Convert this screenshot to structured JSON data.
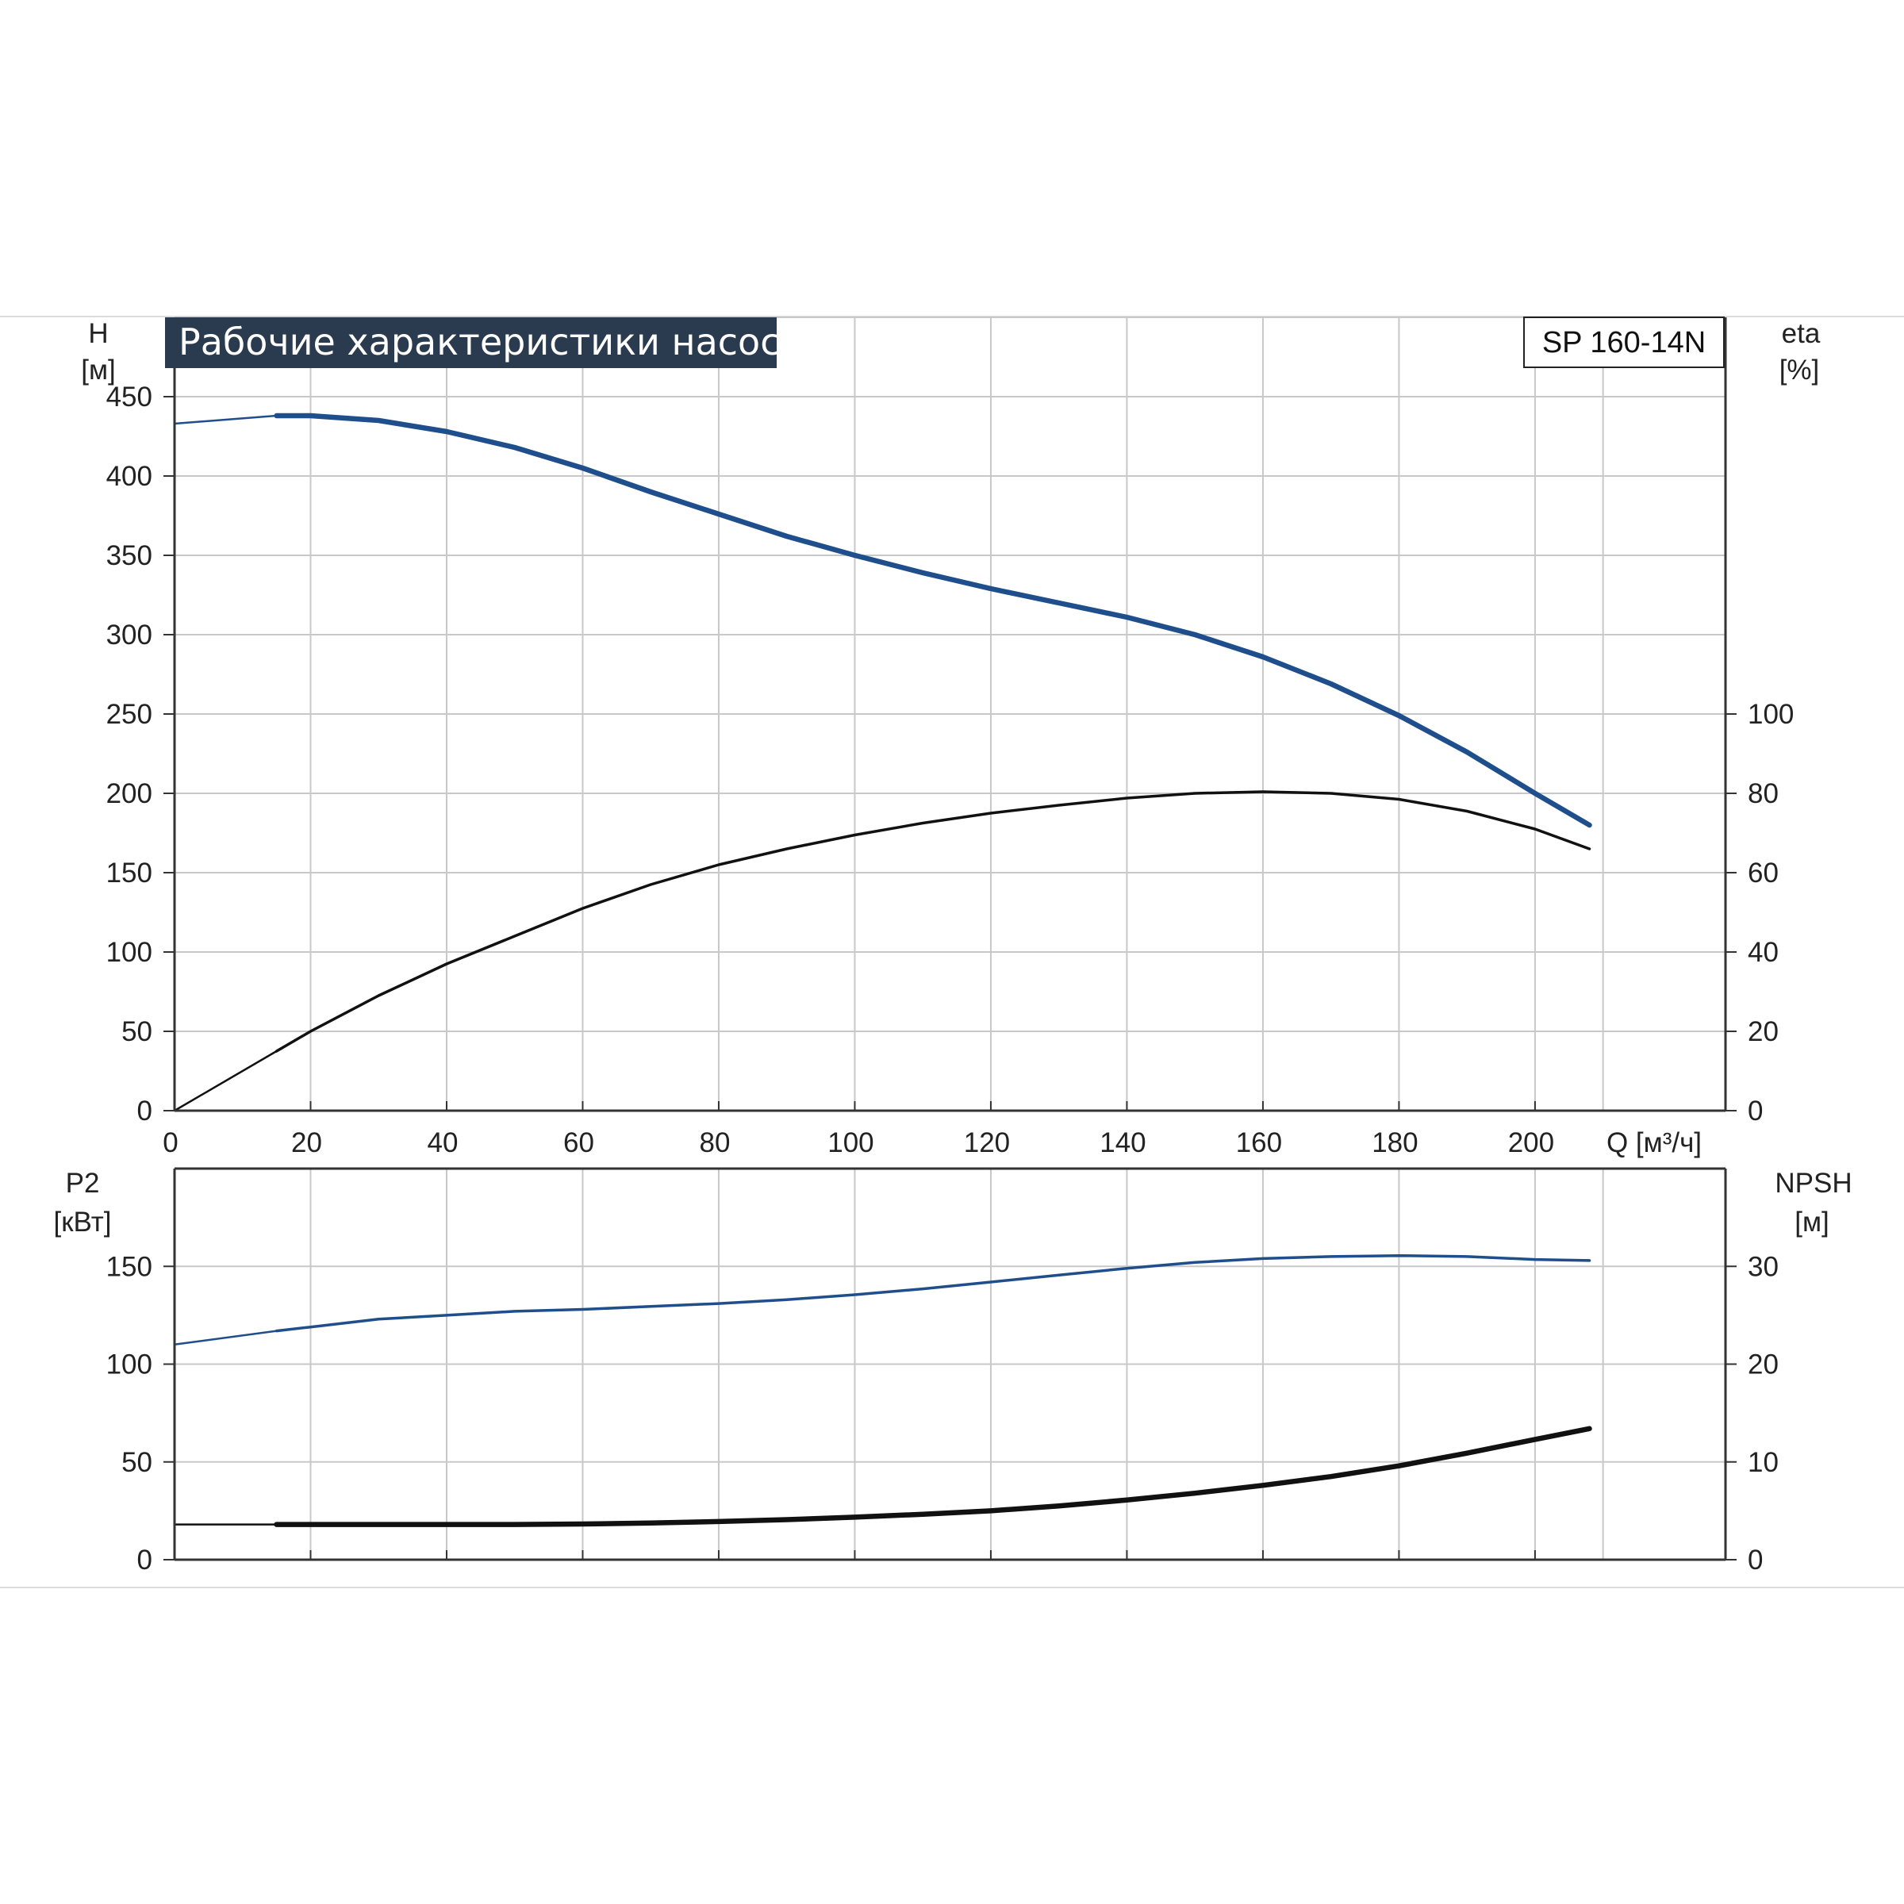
{
  "chart_data": [
    {
      "type": "line",
      "title": "Рабочие характеристики насоса",
      "model": "SP 160-14N",
      "xlabel": "Q [м³/ч]",
      "xlim": [
        0,
        228
      ],
      "x_ticks": [
        0,
        20,
        40,
        60,
        80,
        100,
        120,
        140,
        160,
        180,
        200
      ],
      "y_left": {
        "label_top": "H",
        "label_unit": "[м]",
        "lim": [
          0,
          500
        ],
        "ticks": [
          0,
          50,
          100,
          150,
          200,
          250,
          300,
          350,
          400,
          450
        ]
      },
      "y_right": {
        "label_top": "eta",
        "label_unit": "[%]",
        "lim": [
          0,
          200
        ],
        "ticks": [
          0,
          20,
          40,
          60,
          80,
          100
        ]
      },
      "grid": true,
      "series": [
        {
          "axis": "left",
          "color": "#1f4e8c",
          "x": [
            0,
            15,
            20,
            30,
            40,
            50,
            60,
            70,
            80,
            90,
            100,
            110,
            120,
            130,
            140,
            150,
            160,
            170,
            180,
            190,
            200,
            208
          ],
          "y": [
            433,
            438,
            438,
            435,
            428,
            418,
            405,
            390,
            376,
            362,
            350,
            339,
            329,
            320,
            311,
            300,
            286,
            269,
            249,
            226,
            200,
            180
          ]
        },
        {
          "axis": "right",
          "color": "#111111",
          "x": [
            0,
            15,
            20,
            30,
            40,
            50,
            60,
            70,
            80,
            90,
            100,
            110,
            120,
            130,
            140,
            150,
            160,
            170,
            180,
            190,
            200,
            208
          ],
          "y": [
            0,
            15,
            20,
            29,
            37,
            44,
            51,
            57,
            62,
            66,
            69.5,
            72.5,
            75,
            77,
            78.8,
            80,
            80.4,
            80,
            78.5,
            75.5,
            71,
            66
          ]
        }
      ]
    },
    {
      "type": "line",
      "xlim": [
        0,
        228
      ],
      "x_ticks": [
        0,
        20,
        40,
        60,
        80,
        100,
        120,
        140,
        160,
        180,
        200
      ],
      "y_left": {
        "label_top": "P2",
        "label_unit": "[кВт]",
        "lim": [
          0,
          200
        ],
        "ticks": [
          0,
          50,
          100,
          150
        ]
      },
      "y_right": {
        "label_top": "NPSH",
        "label_unit": "[м]",
        "lim": [
          0,
          40
        ],
        "ticks": [
          0,
          10,
          20,
          30
        ]
      },
      "grid": true,
      "series": [
        {
          "axis": "left",
          "color": "#1f4e8c",
          "x": [
            0,
            15,
            20,
            30,
            40,
            50,
            60,
            70,
            80,
            90,
            100,
            110,
            120,
            130,
            140,
            150,
            160,
            170,
            180,
            190,
            200,
            208
          ],
          "y": [
            110,
            117,
            119,
            123,
            125,
            127,
            128,
            129.5,
            131,
            133,
            135.5,
            138.5,
            142,
            145.5,
            149,
            152,
            154,
            155,
            155.5,
            155,
            153.5,
            153
          ]
        },
        {
          "axis": "right",
          "color": "#111111",
          "x": [
            0,
            15,
            20,
            30,
            40,
            50,
            60,
            70,
            80,
            90,
            100,
            110,
            120,
            130,
            140,
            150,
            160,
            170,
            180,
            190,
            200,
            208
          ],
          "y": [
            3.6,
            3.6,
            3.6,
            3.6,
            3.6,
            3.6,
            3.65,
            3.75,
            3.9,
            4.1,
            4.35,
            4.65,
            5.0,
            5.5,
            6.1,
            6.8,
            7.6,
            8.5,
            9.6,
            10.9,
            12.3,
            13.4
          ]
        }
      ]
    }
  ]
}
